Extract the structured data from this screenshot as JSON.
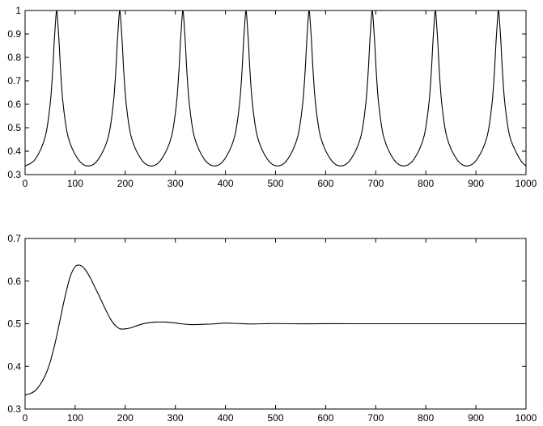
{
  "chart_data": [
    {
      "type": "line",
      "title": "",
      "xlabel": "",
      "ylabel": "",
      "xlim": [
        0,
        1000
      ],
      "ylim": [
        0.3,
        1
      ],
      "xticks": [
        "0",
        "100",
        "200",
        "300",
        "400",
        "500",
        "600",
        "700",
        "800",
        "900",
        "1000"
      ],
      "yticks": [
        "0.3",
        "0.4",
        "0.5",
        "0.6",
        "0.7",
        "0.8",
        "0.9",
        "1"
      ],
      "grid": false,
      "series": [
        {
          "x": [
            0,
            20,
            40,
            50,
            55,
            58,
            61,
            63,
            65,
            68,
            71,
            76,
            86,
            106,
            126,
            146,
            166,
            176,
            181,
            184,
            187,
            189,
            191,
            194,
            197,
            202,
            212,
            232,
            252,
            272,
            292,
            302,
            307,
            310,
            313,
            315,
            317,
            320,
            323,
            328,
            338,
            358,
            378,
            398,
            418,
            428,
            433,
            436,
            439,
            441,
            443,
            446,
            449,
            454,
            464,
            484,
            504,
            524,
            544,
            554,
            559,
            562,
            565,
            567,
            569,
            572,
            575,
            580,
            590,
            610,
            630,
            650,
            670,
            680,
            685,
            688,
            691,
            693,
            695,
            698,
            701,
            706,
            716,
            736,
            756,
            776,
            796,
            806,
            811,
            814,
            817,
            819,
            821,
            824,
            827,
            832,
            842,
            862,
            882,
            902,
            922,
            932,
            937,
            940,
            943,
            945,
            947,
            950,
            953,
            958,
            968,
            988,
            1000
          ],
          "y": [
            0.337,
            0.365,
            0.46,
            0.6,
            0.74,
            0.86,
            0.96,
            1.0,
            0.96,
            0.86,
            0.74,
            0.6,
            0.46,
            0.365,
            0.337,
            0.365,
            0.46,
            0.6,
            0.74,
            0.86,
            0.96,
            1.0,
            0.96,
            0.86,
            0.74,
            0.6,
            0.46,
            0.365,
            0.337,
            0.365,
            0.46,
            0.6,
            0.74,
            0.86,
            0.96,
            1.0,
            0.96,
            0.86,
            0.74,
            0.6,
            0.46,
            0.365,
            0.337,
            0.365,
            0.46,
            0.6,
            0.74,
            0.86,
            0.96,
            1.0,
            0.96,
            0.86,
            0.74,
            0.6,
            0.46,
            0.365,
            0.337,
            0.365,
            0.46,
            0.6,
            0.74,
            0.86,
            0.96,
            1.0,
            0.96,
            0.86,
            0.74,
            0.6,
            0.46,
            0.365,
            0.337,
            0.365,
            0.46,
            0.6,
            0.74,
            0.86,
            0.96,
            1.0,
            0.96,
            0.86,
            0.74,
            0.6,
            0.46,
            0.365,
            0.337,
            0.365,
            0.46,
            0.6,
            0.74,
            0.86,
            0.96,
            1.0,
            0.96,
            0.86,
            0.74,
            0.6,
            0.46,
            0.365,
            0.337,
            0.365,
            0.46,
            0.6,
            0.74,
            0.86,
            0.96,
            1.0,
            0.96,
            0.86,
            0.74,
            0.6,
            0.46,
            0.365,
            0.337
          ]
        }
      ]
    },
    {
      "type": "line",
      "title": "",
      "xlabel": "",
      "ylabel": "",
      "xlim": [
        0,
        1000
      ],
      "ylim": [
        0.3,
        0.7
      ],
      "xticks": [
        "0",
        "100",
        "200",
        "300",
        "400",
        "500",
        "600",
        "700",
        "800",
        "900",
        "1000"
      ],
      "yticks": [
        "0.3",
        "0.4",
        "0.5",
        "0.6",
        "0.7"
      ],
      "grid": false,
      "series": [
        {
          "x": [
            0,
            10,
            20,
            30,
            40,
            50,
            60,
            70,
            80,
            90,
            100,
            110,
            120,
            130,
            140,
            150,
            160,
            170,
            180,
            190,
            200,
            210,
            220,
            230,
            240,
            250,
            260,
            270,
            280,
            290,
            300,
            310,
            320,
            330,
            340,
            350,
            375,
            400,
            425,
            450,
            475,
            500,
            550,
            600,
            650,
            700,
            800,
            900,
            1000
          ],
          "y": [
            0.333,
            0.336,
            0.343,
            0.357,
            0.378,
            0.41,
            0.455,
            0.51,
            0.565,
            0.61,
            0.634,
            0.637,
            0.627,
            0.608,
            0.584,
            0.56,
            0.535,
            0.512,
            0.496,
            0.488,
            0.488,
            0.49,
            0.494,
            0.498,
            0.501,
            0.503,
            0.504,
            0.504,
            0.504,
            0.503,
            0.502,
            0.5,
            0.499,
            0.498,
            0.498,
            0.4985,
            0.4995,
            0.5015,
            0.5005,
            0.4995,
            0.5,
            0.5005,
            0.4998,
            0.5002,
            0.5,
            0.5,
            0.5,
            0.5,
            0.5
          ]
        }
      ]
    }
  ]
}
